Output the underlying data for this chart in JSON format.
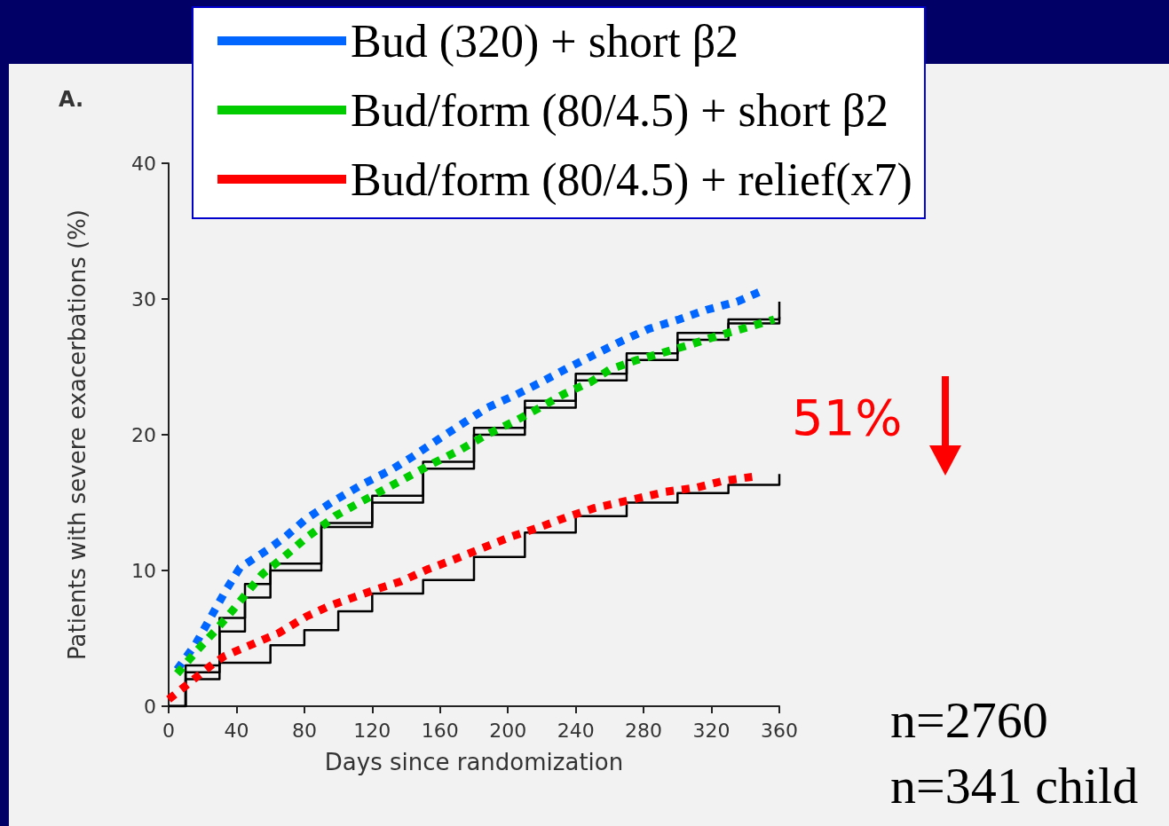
{
  "chart_data": {
    "type": "line",
    "xlabel": "Days since randomization",
    "ylabel": "Patients with severe exacerbations (%)",
    "xlim": [
      0,
      360
    ],
    "xticks": [
      0,
      40,
      80,
      120,
      160,
      200,
      240,
      280,
      320,
      360
    ],
    "ylim": [
      0,
      40
    ],
    "yticks": [
      0,
      10,
      20,
      30,
      40
    ],
    "grid": false,
    "legend": "top",
    "line_style": "dotted",
    "marker": "none",
    "annotations": [
      "A.",
      "51%",
      "n=2760",
      "n=341 child"
    ],
    "series": [
      {
        "type": "step",
        "color": "#000000",
        "line_style": "solid",
        "x": [
          0,
          10,
          30,
          45,
          60,
          90,
          120,
          150,
          180,
          210,
          240,
          270,
          300,
          330,
          360
        ],
        "values": [
          0,
          3,
          6.5,
          9,
          10.5,
          13.5,
          15.5,
          18,
          20.5,
          22.5,
          24.5,
          26,
          27.5,
          28.5,
          29.8
        ]
      },
      {
        "type": "step",
        "color": "#000000",
        "line_style": "solid",
        "x": [
          0,
          10,
          30,
          45,
          60,
          90,
          120,
          150,
          180,
          210,
          240,
          270,
          300,
          330,
          360
        ],
        "values": [
          0,
          2.5,
          5.5,
          8,
          10,
          13.2,
          15,
          17.5,
          20,
          22,
          24,
          25.5,
          27,
          28.2,
          28.7
        ]
      },
      {
        "type": "step",
        "color": "#000000",
        "line_style": "solid",
        "x": [
          0,
          10,
          30,
          60,
          80,
          100,
          120,
          150,
          180,
          210,
          240,
          270,
          300,
          330,
          360
        ],
        "values": [
          0,
          2,
          3.2,
          4.5,
          5.6,
          7,
          8.3,
          9.3,
          11,
          12.8,
          14,
          15,
          15.7,
          16.3,
          17.1
        ]
      },
      {
        "name": "Bud (320) + short β2",
        "color": "#0066ff",
        "x": [
          5,
          16,
          25,
          34,
          42,
          58,
          69,
          81,
          97,
          115,
          131,
          144,
          157,
          173,
          188,
          204,
          220,
          235,
          251,
          267,
          283,
          301,
          317,
          335,
          348
        ],
        "values": [
          2.7,
          4.6,
          6.6,
          8.6,
          10.2,
          11.5,
          12.5,
          13.8,
          15.1,
          16.4,
          17.4,
          18.4,
          19.5,
          20.8,
          22.0,
          22.9,
          23.9,
          24.9,
          25.9,
          26.9,
          27.8,
          28.5,
          29.2,
          29.8,
          30.5
        ]
      },
      {
        "name": "Bud/form (80/4.5) + short β2",
        "color": "#00cc00",
        "x": [
          5,
          16,
          27,
          38,
          49,
          55,
          68,
          81,
          95,
          98,
          111,
          126,
          141,
          156,
          172,
          186,
          189,
          204,
          219,
          233,
          249,
          260,
          276,
          293,
          309,
          324,
          341,
          357
        ],
        "values": [
          2.4,
          4.0,
          5.5,
          7.1,
          8.8,
          9.7,
          11.0,
          12.4,
          13.7,
          14.0,
          14.9,
          15.9,
          16.9,
          17.9,
          18.9,
          19.9,
          20.1,
          21.0,
          22.0,
          23.0,
          23.9,
          24.8,
          25.5,
          26.1,
          26.7,
          27.3,
          27.9,
          28.5
        ]
      },
      {
        "name": "Bud/form (80/4.5) + relief(x7)",
        "color": "#ff0000",
        "x": [
          0,
          13,
          26,
          33,
          50,
          65,
          81,
          95,
          111,
          122,
          137,
          153,
          168,
          184,
          202,
          219,
          234,
          251,
          276,
          293,
          311,
          327,
          344
        ],
        "values": [
          0.5,
          1.8,
          3.1,
          3.7,
          4.6,
          5.4,
          6.6,
          7.4,
          8.1,
          8.6,
          9.2,
          10.1,
          10.8,
          11.6,
          12.5,
          13.2,
          13.9,
          14.6,
          15.3,
          15.8,
          16.1,
          16.6,
          16.9
        ]
      }
    ]
  }
}
